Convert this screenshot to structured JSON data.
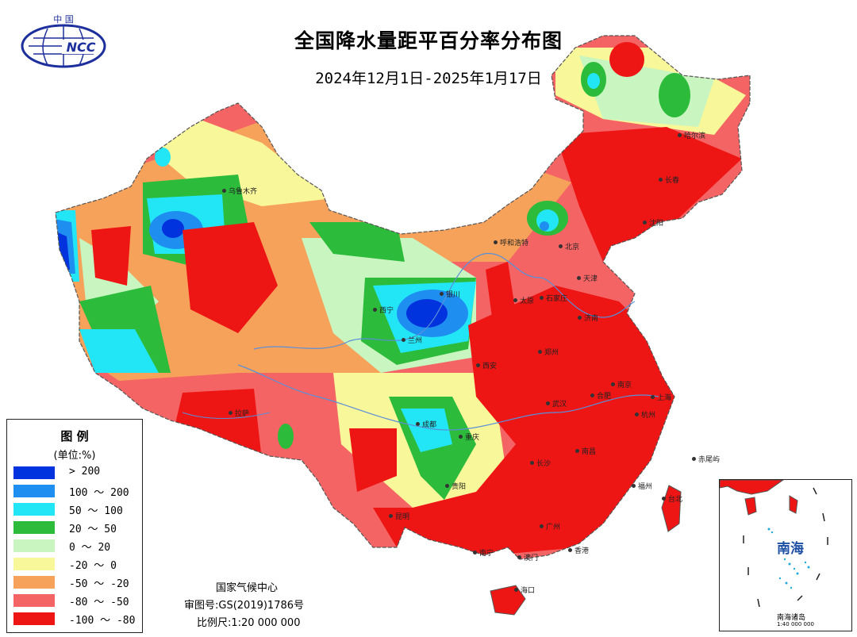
{
  "title": "全国降水量距平百分率分布图",
  "subtitle": "2024年12月1日-2025年1月17日",
  "logo": {
    "top_text": "中 国",
    "mark_text": "NCC"
  },
  "legend": {
    "title": "图 例",
    "unit": "(单位:%)",
    "classes": [
      {
        "label": "> 200",
        "color": "#0033dd"
      },
      {
        "label": "100 ～ 200",
        "color": "#1e8ff0"
      },
      {
        "label": "50 ～ 100",
        "color": "#22e6f5"
      },
      {
        "label": "20 ～ 50",
        "color": "#2cbb3a"
      },
      {
        "label": "0 ～ 20",
        "color": "#c8f5c0"
      },
      {
        "label": "-20 ～ 0",
        "color": "#f8f79a"
      },
      {
        "label": "-50 ～ -20",
        "color": "#f7a25a"
      },
      {
        "label": "-80 ～ -50",
        "color": "#f46464"
      },
      {
        "label": "-100 ～ -80",
        "color": "#ee1515"
      }
    ]
  },
  "credits": {
    "agency": "国家气候中心",
    "map_number": "审图号:GS(2019)1786号",
    "scale": "比例尺:1:20 000 000"
  },
  "inset": {
    "sea_name": "南海",
    "islands_label": "南海诸岛",
    "scale": "1:40 000 000"
  },
  "cities": [
    {
      "name": "乌鲁木齐"
    },
    {
      "name": "哈尔滨"
    },
    {
      "name": "长春"
    },
    {
      "name": "沈阳"
    },
    {
      "name": "呼和浩特"
    },
    {
      "name": "北京"
    },
    {
      "name": "天津"
    },
    {
      "name": "石家庄"
    },
    {
      "name": "太原"
    },
    {
      "name": "银川"
    },
    {
      "name": "西宁"
    },
    {
      "name": "兰州"
    },
    {
      "name": "济南"
    },
    {
      "name": "郑州"
    },
    {
      "name": "西安"
    },
    {
      "name": "拉萨"
    },
    {
      "name": "成都"
    },
    {
      "name": "重庆"
    },
    {
      "name": "武汉"
    },
    {
      "name": "合肥"
    },
    {
      "name": "南京"
    },
    {
      "name": "上海"
    },
    {
      "name": "杭州"
    },
    {
      "name": "贵阳"
    },
    {
      "name": "长沙"
    },
    {
      "name": "南昌"
    },
    {
      "name": "福州"
    },
    {
      "name": "台北"
    },
    {
      "name": "昆明"
    },
    {
      "name": "南宁"
    },
    {
      "name": "广州"
    },
    {
      "name": "香港"
    },
    {
      "name": "澳门"
    },
    {
      "name": "海口"
    },
    {
      "name": "赤尾屿"
    }
  ]
}
